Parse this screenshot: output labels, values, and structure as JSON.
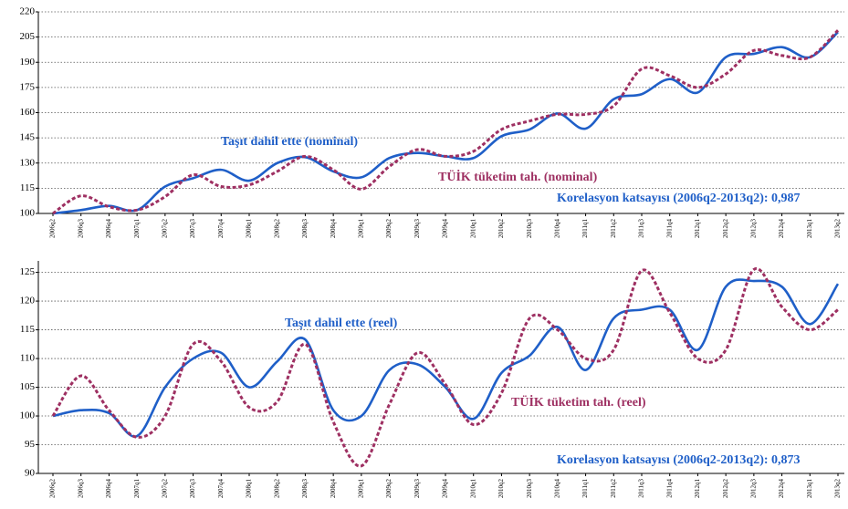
{
  "chart_data": [
    {
      "type": "line",
      "categories": [
        "2006q2",
        "2006q3",
        "2006q4",
        "2007q1",
        "2007q2",
        "2007q3",
        "2007q4",
        "2008q1",
        "2008q2",
        "2008q3",
        "2008q4",
        "2009q1",
        "2009q2",
        "2009q3",
        "2009q4",
        "2010q1",
        "2010q2",
        "2010q3",
        "2010q4",
        "2011q1",
        "2011q2",
        "2011q3",
        "2011q4",
        "2012q1",
        "2012q2",
        "2012q3",
        "2012q4",
        "2013q1",
        "2013q2"
      ],
      "series": [
        {
          "name": "Taşıt dahil ette (nominal)",
          "color": "#1f5fc8",
          "values": [
            100,
            102,
            104.5,
            102,
            116,
            121,
            126,
            119.5,
            130,
            133.5,
            125,
            121.5,
            133,
            136,
            134,
            133,
            146,
            150,
            159.5,
            150.5,
            168,
            171,
            180,
            172,
            193,
            195,
            199,
            193,
            208
          ]
        },
        {
          "name": "TÜİK tüketim tah. (nominal)",
          "color": "#9e3062",
          "dashed": true,
          "values": [
            100,
            110.5,
            104,
            102,
            110,
            123,
            116,
            117,
            125,
            134,
            126,
            114.5,
            128,
            138,
            134,
            137,
            150,
            155,
            159,
            159,
            164,
            186,
            182,
            175,
            183,
            197,
            194,
            193,
            209
          ]
        }
      ],
      "annotations": [
        "Korelasyon katsayısı (2006q2-2013q2): 0,987"
      ],
      "ylim": [
        100,
        220
      ],
      "yticks": [
        100,
        115,
        130,
        145,
        160,
        175,
        190,
        205,
        220
      ],
      "grid": true
    },
    {
      "type": "line",
      "categories": [
        "2006q2",
        "2006q3",
        "2006q4",
        "2007q1",
        "2007q2",
        "2007q3",
        "2007q4",
        "2008q1",
        "2008q2",
        "2008q3",
        "2008q4",
        "2009q1",
        "2009q2",
        "2009q3",
        "2009q4",
        "2010q1",
        "2010q2",
        "2010q3",
        "2010q4",
        "2011q1",
        "2011q2",
        "2011q3",
        "2011q4",
        "2012q1",
        "2012q2",
        "2012q3",
        "2012q4",
        "2013q1",
        "2013q2"
      ],
      "series": [
        {
          "name": "Taşıt dahil ette (reel)",
          "color": "#1f5fc8",
          "values": [
            100,
            101,
            100.5,
            96.5,
            105,
            110,
            111,
            105,
            109.5,
            113.3,
            101,
            100,
            108,
            109,
            105,
            99.5,
            107.5,
            110.5,
            115.5,
            108,
            117,
            118.5,
            118.5,
            111.5,
            122.5,
            123.5,
            122.5,
            116,
            123
          ]
        },
        {
          "name": "TÜİK tüketim tah. (reel)",
          "color": "#9e3062",
          "dashed": true,
          "values": [
            100,
            107,
            101,
            96.3,
            100,
            112.5,
            109.5,
            101.5,
            102.5,
            112.5,
            99,
            91.3,
            102,
            111,
            105.5,
            98.5,
            104,
            117,
            115,
            110,
            111.5,
            125.3,
            118,
            110,
            111.5,
            125.5,
            119,
            115,
            118.5
          ]
        }
      ],
      "annotations": [
        "Korelasyon katsayısı (2006q2-2013q2): 0,873"
      ],
      "ylim": [
        90,
        127
      ],
      "yticks": [
        90,
        95,
        100,
        105,
        110,
        115,
        120,
        125
      ],
      "grid": true
    }
  ]
}
